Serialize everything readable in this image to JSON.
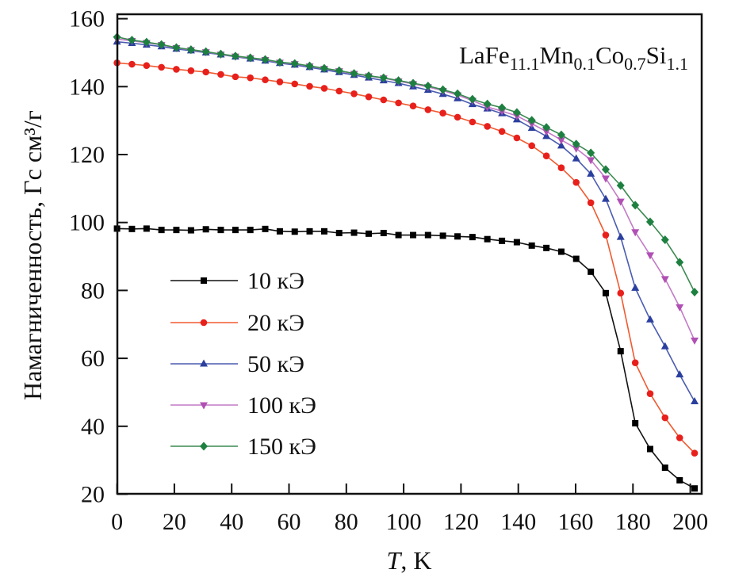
{
  "chart_data": {
    "type": "line",
    "title": "LaFe11.1Mn0.1Co0.7Si1.1",
    "title_segments": [
      [
        "LaFe",
        "11.1"
      ],
      [
        "Mn",
        "0.1"
      ],
      [
        "Co",
        "0.7"
      ],
      [
        "Si",
        "1.1"
      ]
    ],
    "xlabel": "T, K",
    "xlabel_var": "T",
    "xlabel_unit": ", K",
    "ylabel": "Намагниченность, Гс см³/г",
    "xlim": [
      0,
      200
    ],
    "ylim": [
      20,
      160
    ],
    "xticks": [
      0,
      20,
      40,
      60,
      80,
      100,
      120,
      140,
      160,
      180,
      200
    ],
    "yticks": [
      20,
      40,
      60,
      80,
      100,
      120,
      140,
      160
    ],
    "grid": false,
    "legend_position": "left-center",
    "x": [
      0,
      5.2,
      10.3,
      15.5,
      20.7,
      25.8,
      31.0,
      36.2,
      41.3,
      46.5,
      51.7,
      56.8,
      62.0,
      67.2,
      72.3,
      77.5,
      82.7,
      87.8,
      93.0,
      98.2,
      103.3,
      108.5,
      113.7,
      118.8,
      124.0,
      129.2,
      134.3,
      139.5,
      144.7,
      149.8,
      155.0,
      160.2,
      165.3,
      170.5,
      175.7,
      180.8,
      186.0,
      191.2,
      196.3,
      201.5
    ],
    "series": [
      {
        "name": "10 кЭ",
        "color": "#111111",
        "marker_color": "#000000",
        "marker": "square",
        "values": [
          98.2,
          98.1,
          98.2,
          97.8,
          97.8,
          97.7,
          98.0,
          97.8,
          97.8,
          97.8,
          98.1,
          97.4,
          97.3,
          97.4,
          97.4,
          96.9,
          97.0,
          96.7,
          96.9,
          96.3,
          96.3,
          96.3,
          96.1,
          95.9,
          95.7,
          95.1,
          94.6,
          94.2,
          93.2,
          92.5,
          91.4,
          89.3,
          85.5,
          79.2,
          62.1,
          40.9,
          33.3,
          27.8,
          24.1,
          21.7
        ]
      },
      {
        "name": "20 кЭ",
        "color": "#f05a30",
        "marker_color": "#e8201c",
        "marker": "circle",
        "values": [
          147.0,
          146.6,
          146.2,
          145.7,
          145.1,
          144.7,
          144.3,
          143.6,
          142.9,
          142.6,
          142.0,
          141.4,
          140.8,
          140.1,
          139.5,
          138.7,
          137.9,
          137.0,
          136.1,
          135.2,
          134.3,
          133.2,
          132.2,
          131.0,
          129.6,
          128.3,
          126.8,
          124.9,
          122.6,
          119.6,
          116.1,
          111.8,
          105.8,
          96.3,
          79.2,
          58.7,
          49.6,
          42.5,
          36.6,
          32.1
        ]
      },
      {
        "name": "50 кЭ",
        "color": "#4a5cb0",
        "marker_color": "#2b3f9e",
        "marker": "triangle-up",
        "values": [
          153.2,
          152.8,
          152.3,
          151.8,
          151.1,
          150.6,
          150.0,
          149.4,
          148.8,
          148.2,
          147.6,
          146.9,
          146.4,
          145.7,
          145.0,
          144.2,
          143.4,
          142.6,
          141.8,
          141.0,
          140.0,
          139.0,
          137.8,
          136.5,
          134.8,
          133.5,
          132.1,
          130.3,
          127.8,
          125.4,
          122.6,
          118.8,
          114.3,
          106.9,
          95.7,
          80.7,
          71.4,
          63.5,
          55.2,
          47.3
        ]
      },
      {
        "name": "100 кЭ",
        "color": "#c27ac6",
        "marker_color": "#b050b4",
        "marker": "triangle-down",
        "values": [
          154.0,
          153.5,
          152.9,
          152.3,
          151.4,
          150.8,
          150.2,
          149.5,
          148.9,
          148.4,
          147.9,
          147.1,
          146.7,
          146.0,
          145.3,
          144.6,
          143.8,
          143.1,
          142.5,
          141.6,
          140.8,
          139.9,
          138.8,
          137.5,
          135.9,
          134.0,
          132.8,
          131.4,
          129.1,
          126.8,
          124.3,
          121.8,
          118.4,
          113.0,
          106.2,
          97.2,
          90.4,
          83.4,
          75.1,
          65.3
        ]
      },
      {
        "name": "150 кЭ",
        "color": "#3a8a50",
        "marker_color": "#1e8040",
        "marker": "diamond",
        "values": [
          154.6,
          153.7,
          153.1,
          152.4,
          151.5,
          150.9,
          150.3,
          149.6,
          149.0,
          148.5,
          148.0,
          147.2,
          146.8,
          146.1,
          145.4,
          144.7,
          143.9,
          143.2,
          142.6,
          141.8,
          141.0,
          140.2,
          139.1,
          137.9,
          136.3,
          134.9,
          133.8,
          132.4,
          130.1,
          128.0,
          125.8,
          123.1,
          120.5,
          115.6,
          110.9,
          105.1,
          100.2,
          94.9,
          88.3,
          79.5
        ]
      }
    ]
  }
}
